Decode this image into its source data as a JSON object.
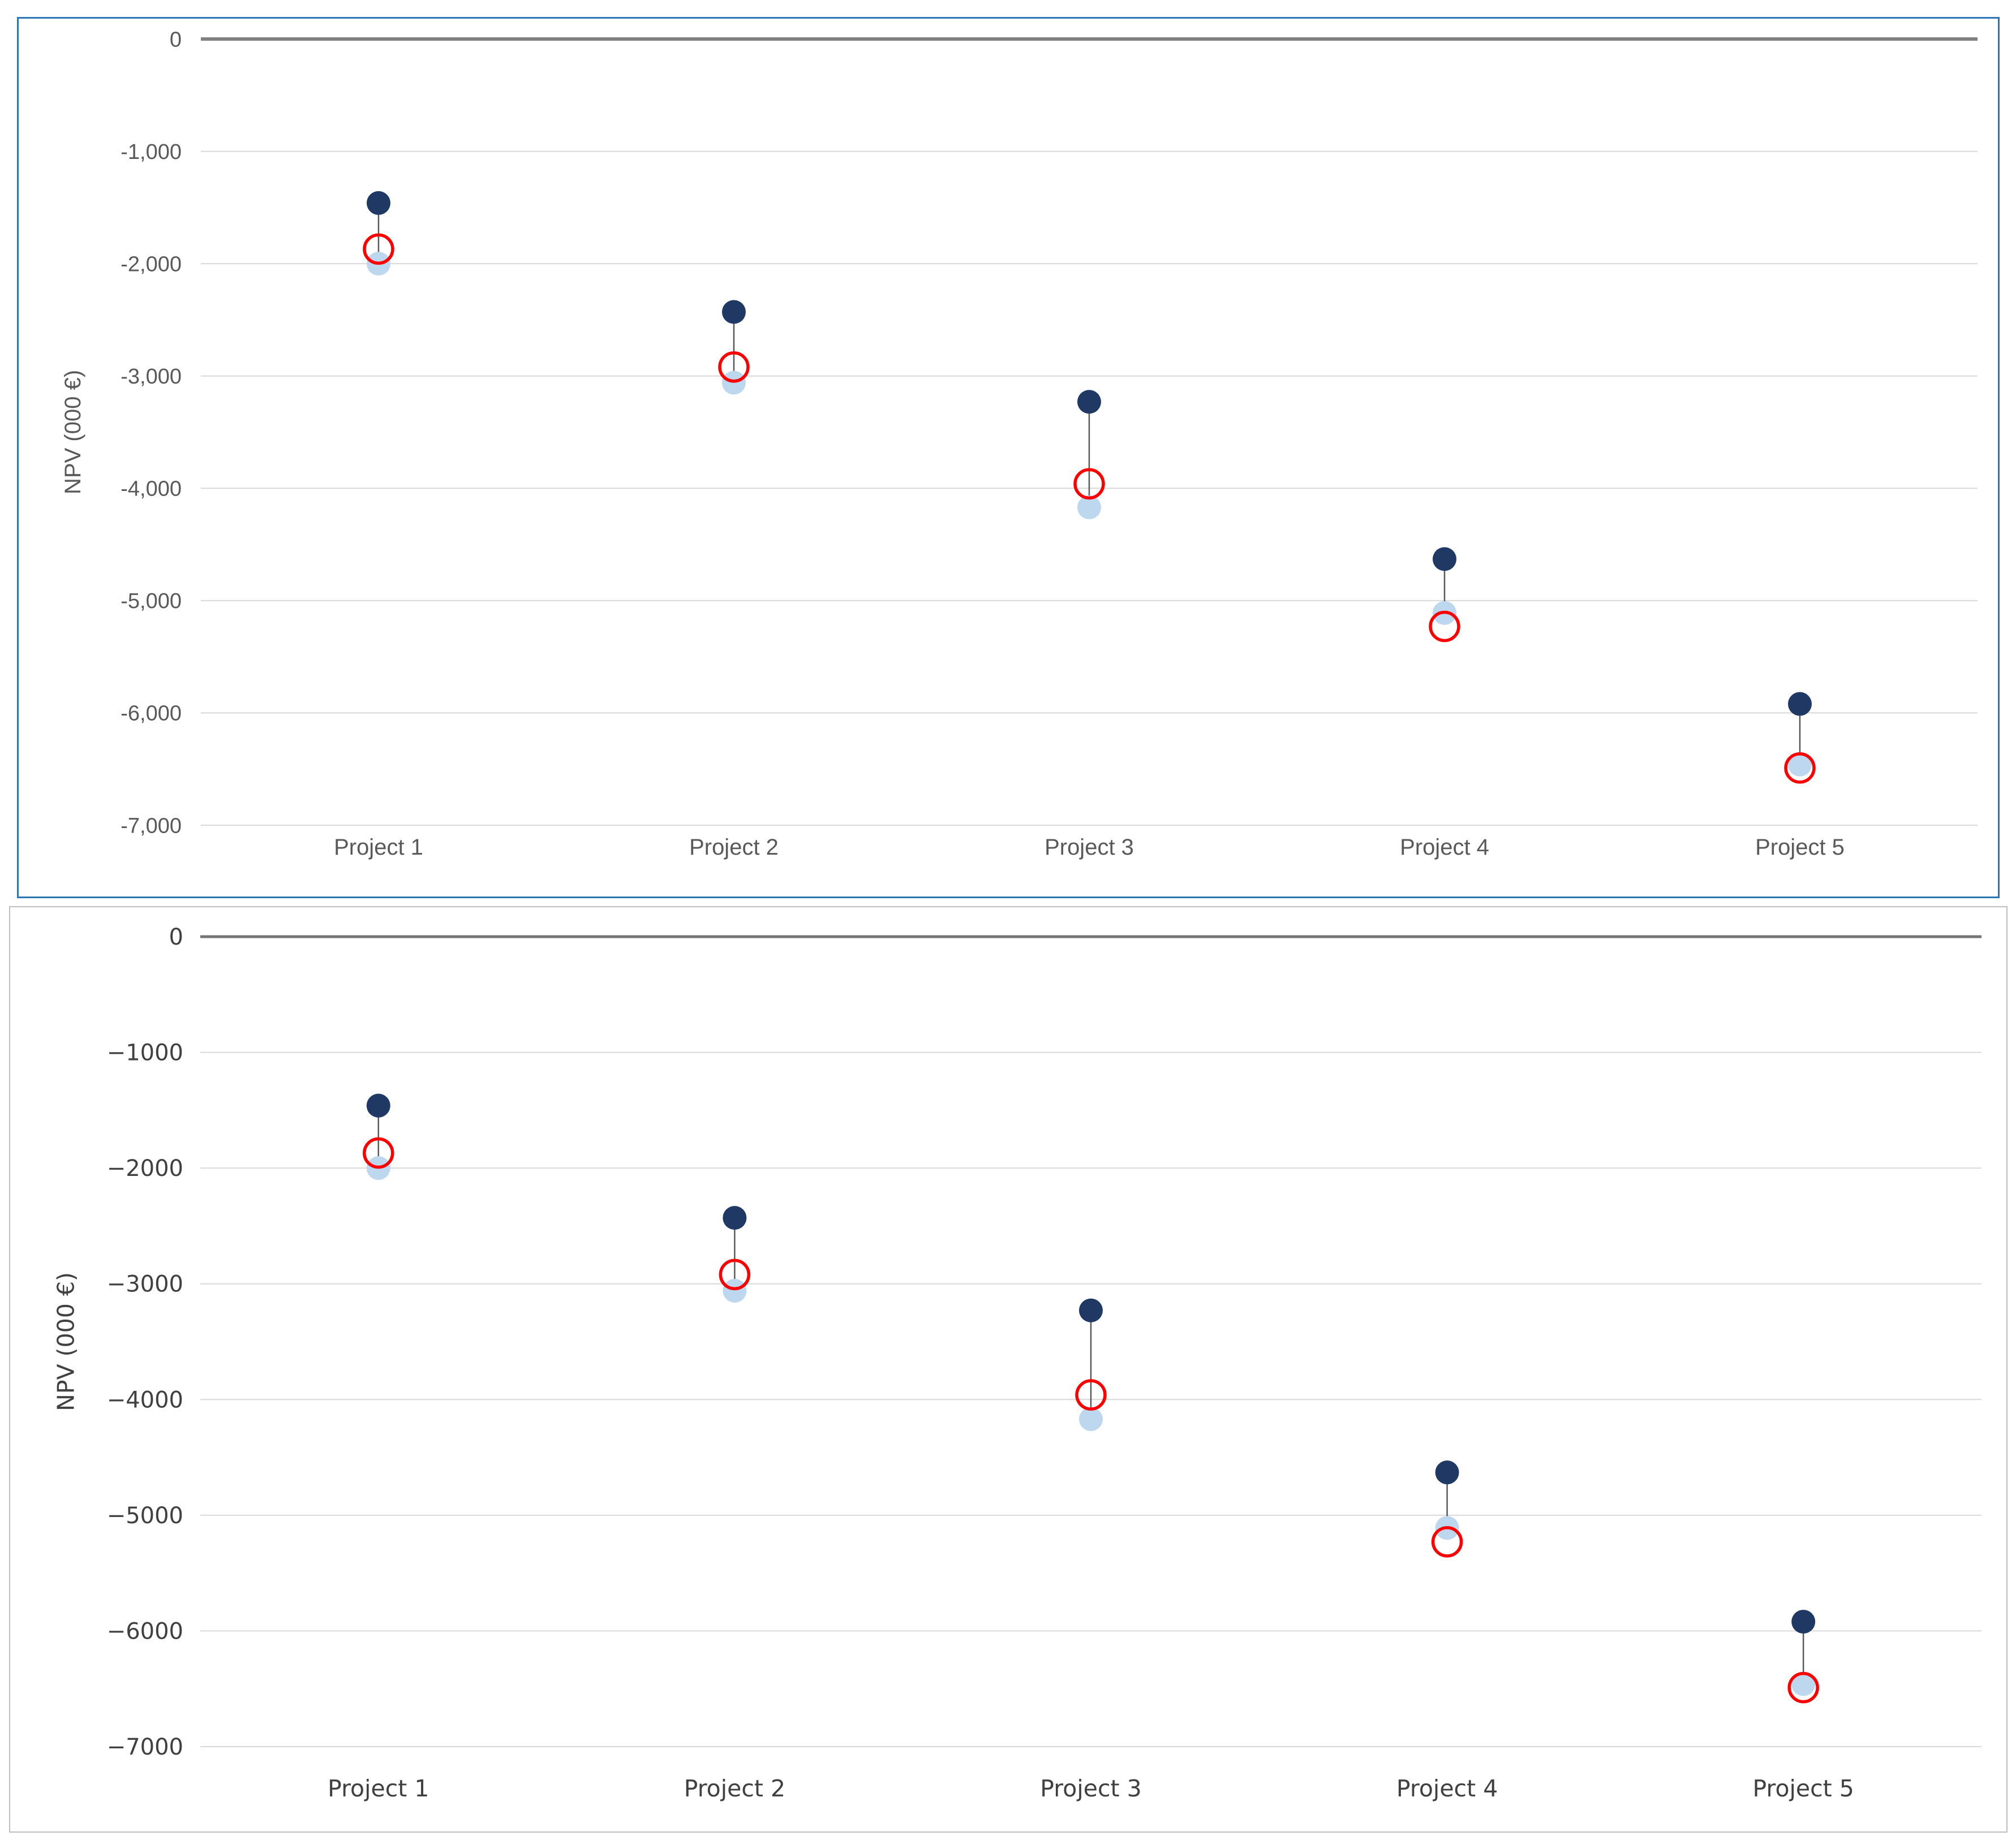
{
  "page": {
    "background": "#FFFFFF"
  },
  "chart_data": [
    {
      "type": "scatter",
      "title": "",
      "xlabel": "",
      "ylabel": "NPV (000 €)",
      "categories": [
        "Project 1",
        "Project 2",
        "Project 3",
        "Project 4",
        "Project 5"
      ],
      "series": [
        {
          "name": "upper-npv-dark-dot",
          "marker": "filled-circle",
          "color": "#1F3864",
          "values": [
            -1460,
            -2430,
            -3230,
            -4630,
            -5920
          ]
        },
        {
          "name": "lower-npv-light-dot",
          "marker": "filled-circle",
          "color": "#BDD7EE",
          "values": [
            -2000,
            -3060,
            -4170,
            -5110,
            -6460
          ]
        },
        {
          "name": "expected-npv-red-open-circle",
          "marker": "open-circle",
          "color": "#FF0000",
          "values": [
            -1870,
            -2920,
            -3960,
            -5230,
            -6490
          ]
        }
      ],
      "connector": {
        "between": [
          "upper-npv-dark-dot",
          "lower-npv-light-dot"
        ],
        "color": "#595959"
      },
      "ylim": [
        -7000,
        0
      ],
      "yticks": [
        0,
        -1000,
        -2000,
        -3000,
        -4000,
        -5000,
        -6000,
        -7000
      ],
      "ytick_labels": [
        "0",
        "-1,000",
        "-2,000",
        "-3,000",
        "-4,000",
        "-5,000",
        "-6,000",
        "-7,000"
      ],
      "grid": "horizontal",
      "legend": "none",
      "border_color": "#2E75B6",
      "colors": {
        "gridline": "#D9D9D9",
        "zero_line": "#808080",
        "text": "#595959"
      }
    },
    {
      "type": "scatter",
      "title": "",
      "xlabel": "",
      "ylabel": "NPV (000 €)",
      "categories": [
        "Project 1",
        "Project 2",
        "Project 3",
        "Project 4",
        "Project 5"
      ],
      "series": [
        {
          "name": "upper-npv-dark-dot",
          "marker": "filled-circle",
          "color": "#1F3864",
          "values": [
            -1460,
            -2430,
            -3230,
            -4630,
            -5920
          ]
        },
        {
          "name": "lower-npv-light-dot",
          "marker": "filled-circle",
          "color": "#BDD7EE",
          "values": [
            -2000,
            -3060,
            -4170,
            -5110,
            -6460
          ]
        },
        {
          "name": "expected-npv-red-open-circle",
          "marker": "open-circle",
          "color": "#FF0000",
          "values": [
            -1870,
            -2920,
            -3960,
            -5230,
            -6490
          ]
        }
      ],
      "connector": {
        "between": [
          "upper-npv-dark-dot",
          "lower-npv-light-dot"
        ],
        "color": "#595959"
      },
      "ylim": [
        -7000,
        0
      ],
      "yticks": [
        0,
        -1000,
        -2000,
        -3000,
        -4000,
        -5000,
        -6000,
        -7000
      ],
      "ytick_labels": [
        "0",
        "−1000",
        "−2000",
        "−3000",
        "−4000",
        "−5000",
        "−6000",
        "−7000"
      ],
      "grid": "horizontal",
      "legend": "none",
      "border_color": "#BFBFBF",
      "colors": {
        "gridline": "#D9D9D9",
        "zero_line": "#737373",
        "text": "#404040"
      }
    }
  ]
}
